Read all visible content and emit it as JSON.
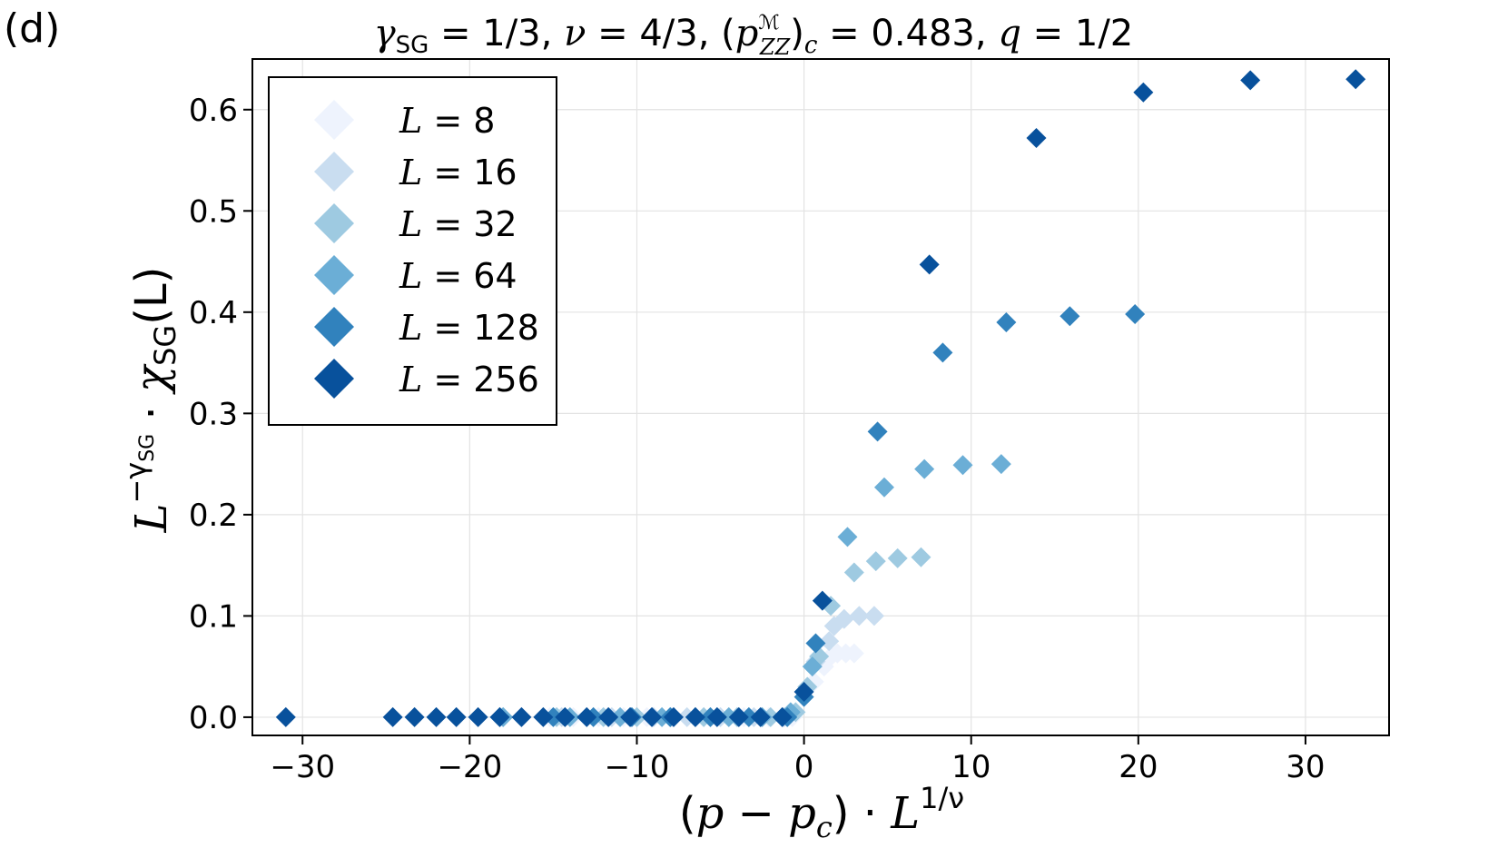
{
  "panel_label": "(d)",
  "title_parts": {
    "gamma": "γ",
    "gamma_sub": "SG",
    "eq1": " = 1/3,  ",
    "nu": "ν",
    "eq2": " = 4/3,  (",
    "p": "p",
    "p_sup": "ℳ",
    "p_sub": "ZZ",
    "close": ")",
    "c_sub": "c",
    "eq3": " = 0.483,  ",
    "q": "q",
    "eq4": " = 1/2"
  },
  "xlabel_parts": {
    "open": "(",
    "p": "p",
    "minus": " − ",
    "p2": "p",
    "c": "c",
    "close": ") · ",
    "L": "L",
    "exp": "1/ν"
  },
  "ylabel_parts": {
    "L": "L",
    "exp": "−γ",
    "exp_sub": "SG",
    "dot": " · ",
    "chi": "χ",
    "chi_sub": "SG",
    "arg": "(L)"
  },
  "chart_data": {
    "type": "scatter",
    "title": "γSG = 1/3, ν = 4/3, (p_ZZ^M)c = 0.483, q = 1/2",
    "xlabel": "(p − pc) · L^{1/ν}",
    "ylabel": "L^{−γSG} · χSG(L)",
    "xlim": [
      -33,
      35
    ],
    "ylim": [
      -0.018,
      0.65
    ],
    "xticks": [
      -30,
      -20,
      -10,
      0,
      10,
      20,
      30
    ],
    "xtick_labels": [
      "−30",
      "−20",
      "−10",
      "0",
      "10",
      "20",
      "30"
    ],
    "yticks": [
      0.0,
      0.1,
      0.2,
      0.3,
      0.4,
      0.5,
      0.6
    ],
    "ytick_labels": [
      "0.0",
      "0.1",
      "0.2",
      "0.3",
      "0.4",
      "0.5",
      "0.6"
    ],
    "grid": true,
    "legend_position": "top-left",
    "marker": "diamond",
    "series": [
      {
        "name": "L = 8",
        "label_L": "L",
        "label_eq": " = 8",
        "color": "#eef3fd",
        "points": [
          [
            -15.2,
            0
          ],
          [
            -13.8,
            0
          ],
          [
            -12.3,
            0
          ],
          [
            -10.8,
            0
          ],
          [
            -9.4,
            0
          ],
          [
            -7.9,
            0
          ],
          [
            -6.5,
            0
          ],
          [
            -5.0,
            0
          ],
          [
            -3.6,
            0
          ],
          [
            -2.1,
            0
          ],
          [
            -0.7,
            0
          ],
          [
            0.0,
            0.02
          ],
          [
            0.6,
            0.035
          ],
          [
            1.2,
            0.05
          ],
          [
            1.6,
            0.06
          ],
          [
            2.0,
            0.063
          ],
          [
            2.5,
            0.063
          ],
          [
            3.0,
            0.063
          ]
        ]
      },
      {
        "name": "L = 16",
        "label_L": "L",
        "label_eq": " = 16",
        "color": "#c9ddf0",
        "points": [
          [
            -18.0,
            0
          ],
          [
            -14.5,
            0
          ],
          [
            -11.5,
            0
          ],
          [
            -9.0,
            0
          ],
          [
            -7.0,
            0
          ],
          [
            -5.0,
            0
          ],
          [
            -3.0,
            0
          ],
          [
            -1.2,
            0
          ],
          [
            0.0,
            0.025
          ],
          [
            0.7,
            0.055
          ],
          [
            1.5,
            0.075
          ],
          [
            1.8,
            0.09
          ],
          [
            2.4,
            0.097
          ],
          [
            3.3,
            0.1
          ],
          [
            4.2,
            0.1
          ]
        ]
      },
      {
        "name": "L = 32",
        "label_L": "L",
        "label_eq": " = 32",
        "color": "#9ecae1",
        "points": [
          [
            -18.2,
            0
          ],
          [
            -14.8,
            0
          ],
          [
            -12.0,
            0
          ],
          [
            -10.0,
            0
          ],
          [
            -8.0,
            0
          ],
          [
            -6.0,
            0
          ],
          [
            -4.0,
            0
          ],
          [
            -2.0,
            0
          ],
          [
            -0.5,
            0.005
          ],
          [
            0.2,
            0.03
          ],
          [
            0.9,
            0.06
          ],
          [
            1.6,
            0.11
          ],
          [
            3.0,
            0.143
          ],
          [
            4.3,
            0.154
          ],
          [
            5.6,
            0.157
          ],
          [
            7.0,
            0.158
          ]
        ]
      },
      {
        "name": "L = 64",
        "label_L": "L",
        "label_eq": " = 64",
        "color": "#6baed6",
        "points": [
          [
            -18.0,
            0
          ],
          [
            -14.0,
            0
          ],
          [
            -11.0,
            0
          ],
          [
            -8.5,
            0
          ],
          [
            -6.5,
            0
          ],
          [
            -4.5,
            0
          ],
          [
            -2.5,
            0
          ],
          [
            -0.8,
            0.005
          ],
          [
            0.5,
            0.05
          ],
          [
            2.6,
            0.178
          ],
          [
            4.8,
            0.227
          ],
          [
            7.2,
            0.245
          ],
          [
            9.5,
            0.249
          ],
          [
            11.8,
            0.25
          ]
        ]
      },
      {
        "name": "L = 128",
        "label_L": "L",
        "label_eq": " = 128",
        "color": "#3182bd",
        "points": [
          [
            -15.0,
            0
          ],
          [
            -12.6,
            0
          ],
          [
            -10.3,
            0
          ],
          [
            -8.0,
            0
          ],
          [
            -5.6,
            0
          ],
          [
            -3.3,
            0
          ],
          [
            -1.0,
            0
          ],
          [
            0.0,
            0.02
          ],
          [
            0.7,
            0.073
          ],
          [
            4.4,
            0.282
          ],
          [
            8.3,
            0.36
          ],
          [
            12.1,
            0.39
          ],
          [
            15.9,
            0.396
          ],
          [
            19.8,
            0.398
          ]
        ]
      },
      {
        "name": "L = 256",
        "label_L": "L",
        "label_eq": " = 256",
        "color": "#08519c",
        "points": [
          [
            -31.0,
            0
          ],
          [
            -24.6,
            0
          ],
          [
            -23.3,
            0
          ],
          [
            -22.0,
            0
          ],
          [
            -20.8,
            0
          ],
          [
            -19.5,
            0
          ],
          [
            -18.2,
            0
          ],
          [
            -16.9,
            0
          ],
          [
            -15.6,
            0
          ],
          [
            -14.3,
            0
          ],
          [
            -13.0,
            0
          ],
          [
            -11.7,
            0
          ],
          [
            -10.4,
            0
          ],
          [
            -9.1,
            0
          ],
          [
            -7.8,
            0
          ],
          [
            -6.5,
            0
          ],
          [
            -5.2,
            0
          ],
          [
            -3.9,
            0
          ],
          [
            -2.6,
            0
          ],
          [
            -1.3,
            0
          ],
          [
            0.0,
            0.025
          ],
          [
            1.1,
            0.115
          ],
          [
            7.5,
            0.447
          ],
          [
            13.9,
            0.572
          ],
          [
            20.3,
            0.617
          ],
          [
            26.7,
            0.629
          ],
          [
            33.0,
            0.63
          ]
        ]
      }
    ]
  }
}
